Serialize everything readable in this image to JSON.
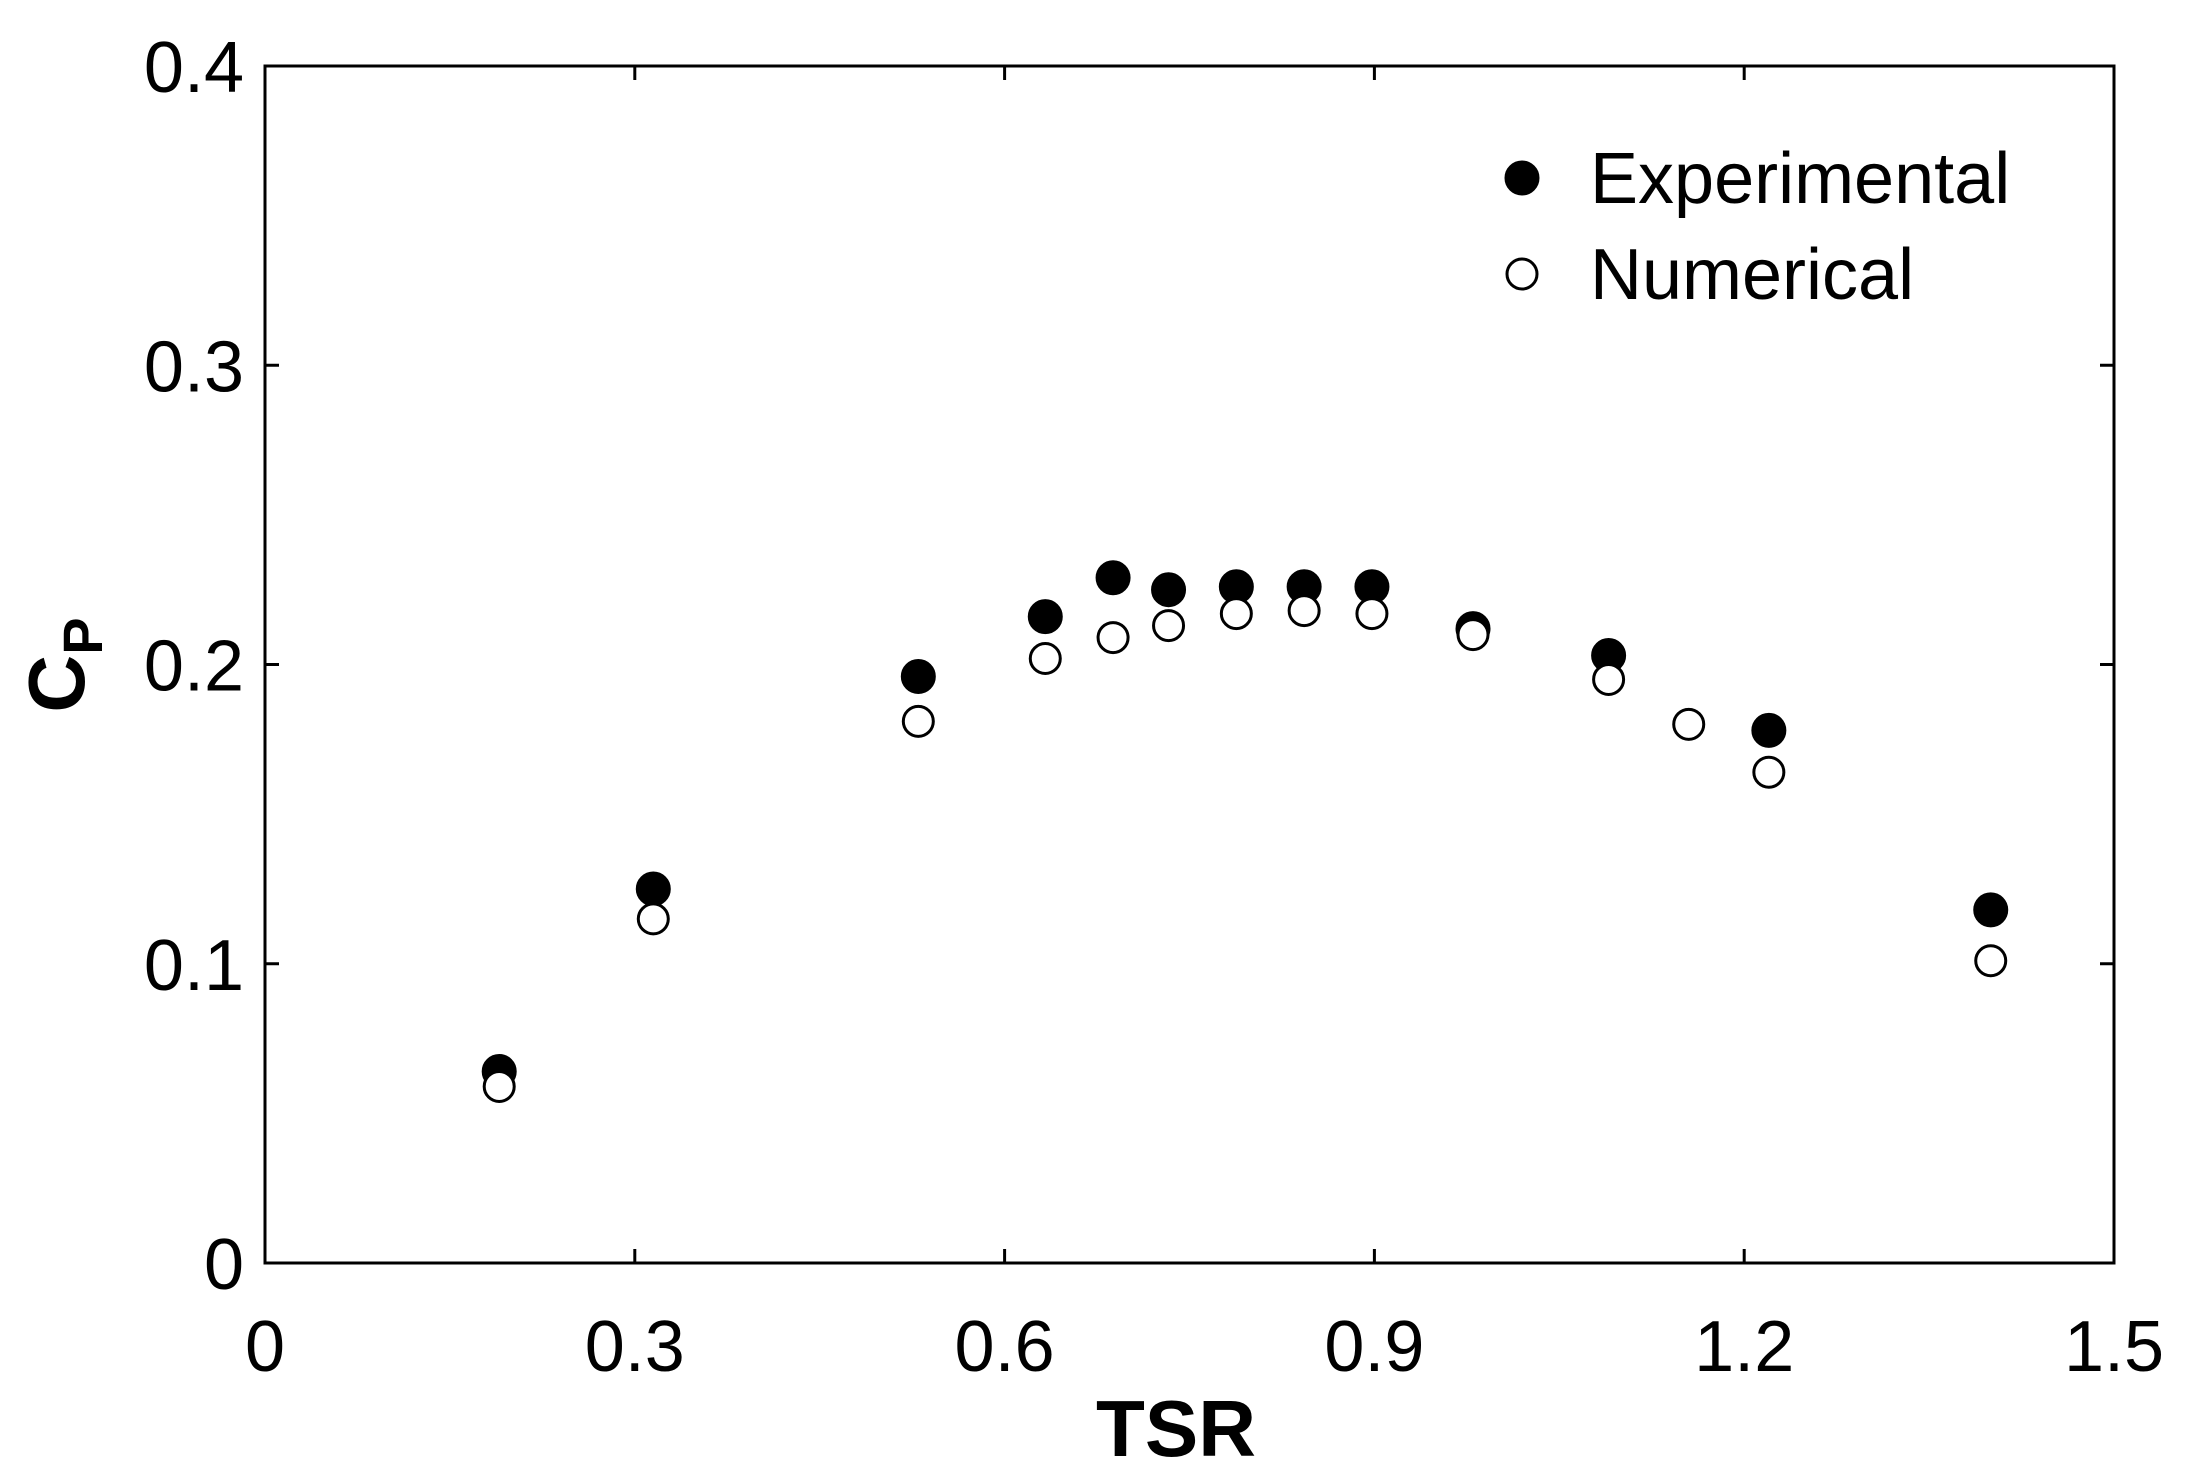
{
  "chart_data": {
    "type": "scatter",
    "title": "",
    "xlabel": "TSR",
    "ylabel_main": "C",
    "ylabel_sub": "P",
    "xlim": [
      0,
      1.5
    ],
    "ylim": [
      0,
      0.4
    ],
    "x_ticks": [
      0,
      0.3,
      0.6,
      0.9,
      1.2,
      1.5
    ],
    "x_tick_labels": [
      "0",
      "0.3",
      "0.6",
      "0.9",
      "1.2",
      "1.5"
    ],
    "y_ticks": [
      0,
      0.1,
      0.2,
      0.3,
      0.4
    ],
    "y_tick_labels": [
      "0",
      "0.1",
      "0.2",
      "0.3",
      "0.4"
    ],
    "grid": false,
    "legend_position": "top-right",
    "series": [
      {
        "name": "Experimental",
        "marker": "filled-circle",
        "color": "#000000",
        "points": [
          {
            "x": 0.19,
            "y": 0.064
          },
          {
            "x": 0.315,
            "y": 0.125
          },
          {
            "x": 0.53,
            "y": 0.196
          },
          {
            "x": 0.633,
            "y": 0.216
          },
          {
            "x": 0.688,
            "y": 0.229
          },
          {
            "x": 0.733,
            "y": 0.225
          },
          {
            "x": 0.788,
            "y": 0.226
          },
          {
            "x": 0.843,
            "y": 0.226
          },
          {
            "x": 0.898,
            "y": 0.226
          },
          {
            "x": 0.98,
            "y": 0.212
          },
          {
            "x": 1.09,
            "y": 0.203
          },
          {
            "x": 1.22,
            "y": 0.178
          },
          {
            "x": 1.4,
            "y": 0.118
          }
        ]
      },
      {
        "name": "Numerical",
        "marker": "open-circle",
        "color": "#000000",
        "points": [
          {
            "x": 0.19,
            "y": 0.059
          },
          {
            "x": 0.315,
            "y": 0.115
          },
          {
            "x": 0.53,
            "y": 0.181
          },
          {
            "x": 0.633,
            "y": 0.202
          },
          {
            "x": 0.688,
            "y": 0.209
          },
          {
            "x": 0.733,
            "y": 0.213
          },
          {
            "x": 0.788,
            "y": 0.217
          },
          {
            "x": 0.843,
            "y": 0.218
          },
          {
            "x": 0.898,
            "y": 0.217
          },
          {
            "x": 0.98,
            "y": 0.21
          },
          {
            "x": 1.09,
            "y": 0.195
          },
          {
            "x": 1.155,
            "y": 0.18
          },
          {
            "x": 1.22,
            "y": 0.164
          },
          {
            "x": 1.4,
            "y": 0.101
          }
        ]
      }
    ]
  }
}
